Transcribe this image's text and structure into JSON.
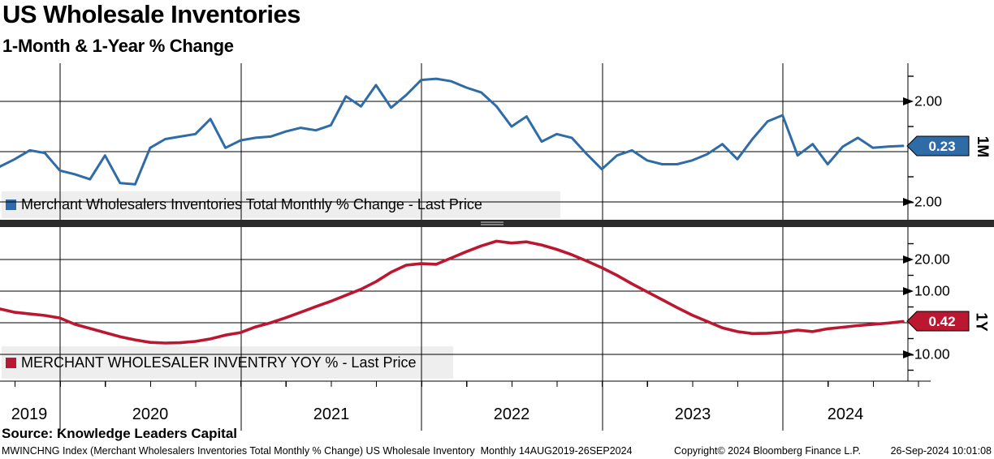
{
  "header": {
    "title": "US Wholesale Inventories",
    "subtitle": "1-Month & 1-Year % Change"
  },
  "colors": {
    "blue": "#2f6ba6",
    "red": "#bc1731",
    "legend_bg": "#eeeeee",
    "grid": "#000000",
    "divider_bar": "#2b2b2b",
    "divider_grip": "#9a9a9a"
  },
  "chart_data": [
    {
      "type": "line",
      "panel": "top",
      "series_name": "Merchant Wholesalers Inventories Total Monthly % Change",
      "legend_label": "Merchant Wholesalers Inventories Total Monthly % Change - Last Price",
      "axis_unit": "1M",
      "last_price_badge": "0.23",
      "color": "#2f6ba6",
      "frequency": "monthly",
      "x_start": "Aug 2019",
      "x_end": "Sep 2024",
      "ylim": [
        -2.9,
        3.5
      ],
      "grid": true,
      "legend_position": "bottom-left",
      "ytick_labels_major": [
        "2.00",
        "-2.00"
      ],
      "ytick_values_major": [
        2,
        -2
      ],
      "gridline_values": [
        2,
        0,
        -2
      ],
      "ytick_values_minor": [
        3,
        1,
        -1
      ],
      "values": [
        -0.1,
        -0.6,
        -0.3,
        0.05,
        -0.05,
        -0.75,
        -0.9,
        -1.1,
        -0.15,
        -1.25,
        -1.3,
        0.15,
        0.5,
        0.6,
        0.7,
        1.3,
        0.15,
        0.45,
        0.55,
        0.6,
        0.8,
        0.95,
        0.85,
        1.05,
        2.2,
        1.8,
        2.65,
        1.75,
        2.25,
        2.85,
        2.9,
        2.8,
        2.55,
        2.35,
        1.8,
        1.0,
        1.4,
        0.4,
        0.7,
        0.55,
        -0.1,
        -0.7,
        -0.15,
        0.05,
        -0.35,
        -0.5,
        -0.5,
        -0.35,
        -0.1,
        0.3,
        -0.3,
        0.5,
        1.2,
        1.45,
        -0.15,
        0.3,
        -0.5,
        0.2,
        0.55,
        0.15,
        0.2,
        0.23
      ]
    },
    {
      "type": "line",
      "panel": "bottom",
      "series_name": "MERCHANT WHOLESALER INVENTRY YOY %",
      "legend_label": "MERCHANT WHOLESALER INVENTRY YOY % - Last Price",
      "axis_unit": "1Y",
      "last_price_badge": "0.42",
      "color": "#bc1731",
      "frequency": "monthly",
      "x_start": "Aug 2019",
      "x_end": "Sep 2024",
      "ylim": [
        -18.5,
        30.5
      ],
      "grid": true,
      "legend_position": "bottom-left",
      "ytick_labels_major": [
        "20.00",
        "10.00",
        "-10.00"
      ],
      "ytick_values_major": [
        20,
        10,
        -10
      ],
      "gridline_values": [
        20,
        10,
        0,
        -10
      ],
      "ytick_values_minor": [
        25,
        15,
        5,
        -5,
        -15
      ],
      "values": [
        5.3,
        4.4,
        3.3,
        2.8,
        2.3,
        1.5,
        -0.5,
        -1.8,
        -3.1,
        -4.4,
        -5.4,
        -6.2,
        -6.4,
        -6.3,
        -5.9,
        -5.1,
        -3.9,
        -3.1,
        -1.3,
        0.0,
        1.6,
        3.3,
        5.1,
        6.8,
        8.7,
        10.6,
        13.0,
        16.0,
        18.2,
        18.7,
        18.5,
        20.5,
        22.5,
        24.3,
        25.8,
        25.2,
        25.6,
        24.6,
        23.2,
        21.5,
        19.5,
        17.4,
        15.0,
        12.3,
        9.8,
        7.3,
        4.8,
        2.4,
        0.4,
        -1.6,
        -2.8,
        -3.4,
        -3.3,
        -3.0,
        -2.3,
        -2.8,
        -1.9,
        -1.4,
        -0.9,
        -0.5,
        -0.1,
        0.42
      ]
    }
  ],
  "x_axis": {
    "year_labels": [
      "2019",
      "2020",
      "2021",
      "2022",
      "2023",
      "2024"
    ]
  },
  "source_line": "Source: Knowledge Leaders Capital",
  "footer": {
    "left": "MWINCHNG Index (Merchant Wholesalers Inventories Total Monthly % Change) US Wholesale Inventory  Monthly 14AUG2019-26SEP2024",
    "copyright": "Copyright© 2024 Bloomberg Finance L.P.",
    "timestamp": "26-Sep-2024 10:01:08"
  }
}
